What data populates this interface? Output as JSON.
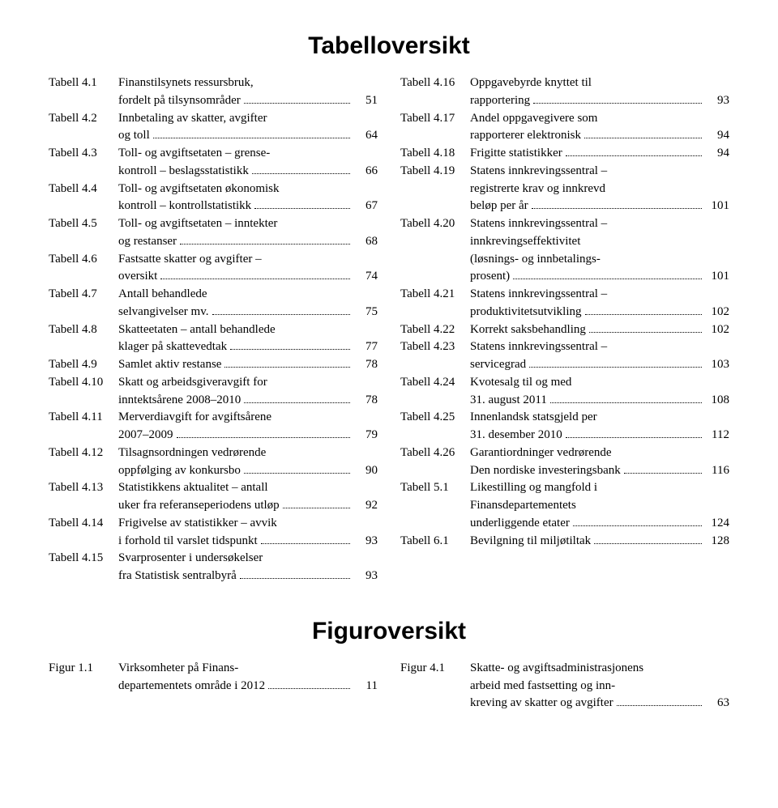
{
  "titles": {
    "tabell": "Tabelloversikt",
    "figur": "Figuroversikt"
  },
  "fonts": {
    "title_family": "Arial, Helvetica, sans-serif",
    "body_family": "Georgia, 'Times New Roman', serif",
    "title_size_pt": 22,
    "body_size_pt": 11
  },
  "colors": {
    "text": "#000000",
    "background": "#ffffff"
  },
  "tabell": {
    "left": [
      {
        "label": "Tabell 4.1",
        "lines": [
          "Finanstilsynets ressursbruk,",
          "fordelt på tilsynsområder"
        ],
        "page": "51"
      },
      {
        "label": "Tabell 4.2",
        "lines": [
          "Innbetaling av skatter, avgifter",
          "og toll"
        ],
        "page": "64"
      },
      {
        "label": "Tabell 4.3",
        "lines": [
          "Toll- og avgiftsetaten – grense-",
          "kontroll – beslagsstatistikk"
        ],
        "page": "66"
      },
      {
        "label": "Tabell 4.4",
        "lines": [
          "Toll- og avgiftsetaten økonomisk",
          "kontroll – kontrollstatistikk"
        ],
        "page": "67"
      },
      {
        "label": "Tabell 4.5",
        "lines": [
          "Toll- og avgiftsetaten – inntekter",
          "og restanser"
        ],
        "page": "68"
      },
      {
        "label": "Tabell 4.6",
        "lines": [
          "Fastsatte skatter og avgifter –",
          "oversikt"
        ],
        "page": "74"
      },
      {
        "label": "Tabell 4.7",
        "lines": [
          "Antall behandlede",
          "selvangivelser mv."
        ],
        "page": "75"
      },
      {
        "label": "Tabell 4.8",
        "lines": [
          "Skatteetaten – antall behandlede",
          "klager på skattevedtak"
        ],
        "page": "77"
      },
      {
        "label": "Tabell 4.9",
        "lines": [
          "Samlet aktiv restanse"
        ],
        "page": "78"
      },
      {
        "label": "Tabell 4.10",
        "lines": [
          "Skatt og arbeidsgiveravgift for",
          "inntektsårene 2008–2010"
        ],
        "page": "78"
      },
      {
        "label": "Tabell 4.11",
        "lines": [
          "Merverdiavgift for avgiftsårene",
          "2007–2009"
        ],
        "page": "79"
      },
      {
        "label": "Tabell 4.12",
        "lines": [
          "Tilsagnsordningen vedrørende",
          "oppfølging av konkursbo"
        ],
        "page": "90"
      },
      {
        "label": "Tabell 4.13",
        "lines": [
          "Statistikkens aktualitet – antall",
          "uker fra referanseperiodens utløp"
        ],
        "page": "92"
      },
      {
        "label": "Tabell 4.14",
        "lines": [
          "Frigivelse av statistikker – avvik",
          "i forhold til varslet tidspunkt"
        ],
        "page": "93"
      },
      {
        "label": "Tabell 4.15",
        "lines": [
          "Svarprosenter i undersøkelser",
          "fra Statistisk sentralbyrå"
        ],
        "page": "93"
      }
    ],
    "right": [
      {
        "label": "Tabell 4.16",
        "lines": [
          "Oppgavebyrde knyttet til",
          "rapportering"
        ],
        "page": "93"
      },
      {
        "label": "Tabell 4.17",
        "lines": [
          "Andel oppgavegivere som",
          "rapporterer elektronisk"
        ],
        "page": "94"
      },
      {
        "label": "Tabell 4.18",
        "lines": [
          "Frigitte statistikker"
        ],
        "page": "94"
      },
      {
        "label": "Tabell 4.19",
        "lines": [
          "Statens innkrevingssentral –",
          "registrerte krav og innkrevd",
          "beløp per år"
        ],
        "page": "101"
      },
      {
        "label": "Tabell 4.20",
        "lines": [
          "Statens innkrevingssentral –",
          "innkrevingseffektivitet",
          "(løsnings- og innbetalings-",
          "prosent)"
        ],
        "page": "101"
      },
      {
        "label": "Tabell 4.21",
        "lines": [
          "Statens innkrevingssentral –",
          "produktivitetsutvikling"
        ],
        "page": "102"
      },
      {
        "label": "Tabell 4.22",
        "lines": [
          "Korrekt saksbehandling"
        ],
        "page": "102"
      },
      {
        "label": "Tabell 4.23",
        "lines": [
          "Statens innkrevingssentral –",
          "servicegrad"
        ],
        "page": "103"
      },
      {
        "label": "Tabell 4.24",
        "lines": [
          "Kvotesalg til og med",
          "31. august 2011"
        ],
        "page": "108"
      },
      {
        "label": "Tabell 4.25",
        "lines": [
          "Innenlandsk statsgjeld per",
          "31. desember 2010"
        ],
        "page": "112"
      },
      {
        "label": "Tabell 4.26",
        "lines": [
          "Garantiordninger vedrørende",
          "Den nordiske investeringsbank"
        ],
        "page": "116"
      },
      {
        "label": "Tabell 5.1",
        "lines": [
          "Likestilling og mangfold i",
          "Finansdepartementets",
          "underliggende etater"
        ],
        "page": "124"
      },
      {
        "label": "Tabell 6.1",
        "lines": [
          "Bevilgning til miljøtiltak"
        ],
        "page": "128"
      }
    ]
  },
  "figur": {
    "left": [
      {
        "label": "Figur 1.1",
        "lines": [
          "Virksomheter på Finans-",
          "departementets område i 2012"
        ],
        "page": "11"
      }
    ],
    "right": [
      {
        "label": "Figur 4.1",
        "lines": [
          "Skatte- og avgiftsadministrasjonens",
          "arbeid med fastsetting og inn-",
          "kreving av skatter og avgifter"
        ],
        "page": "63"
      }
    ]
  }
}
